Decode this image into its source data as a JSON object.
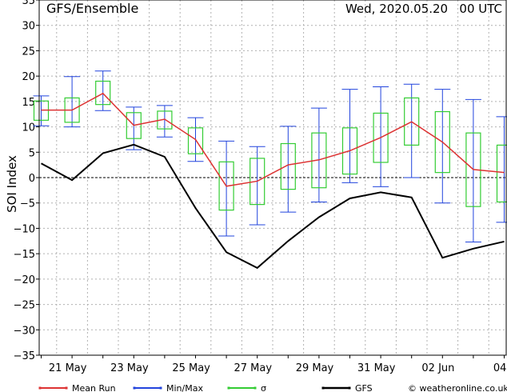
{
  "chart_data": {
    "type": "box",
    "title": "GFS/Ensemble",
    "date_label": "Wed, 2020.05.20   00 UTC",
    "ylabel": "SOI Index",
    "ylim": [
      -35,
      35
    ],
    "yticks": [
      35,
      30,
      25,
      20,
      15,
      10,
      5,
      0,
      -5,
      -10,
      -15,
      -20,
      -25,
      -30,
      -35
    ],
    "x_labels": [
      "21 May",
      "23 May",
      "25 May",
      "27 May",
      "29 May",
      "31 May",
      "02 Jun",
      "04"
    ],
    "grid": true,
    "zero_line": true,
    "series": {
      "mean_run": {
        "name": "Mean Run",
        "color": "#dd3333",
        "values": [
          13.3,
          13.3,
          16.6,
          10.3,
          11.5,
          7.5,
          -1.7,
          -0.7,
          2.5,
          3.5,
          5.3,
          7.9,
          11.0,
          7.0,
          1.6,
          1.0
        ]
      },
      "min_max": {
        "name": "Min/Max",
        "color": "#2244dd",
        "min": [
          10.2,
          10.0,
          13.2,
          5.5,
          8.0,
          3.2,
          -11.5,
          -9.3,
          -6.8,
          -4.8,
          -1.0,
          -1.8,
          0,
          -5.0,
          -12.7,
          -8.8
        ],
        "max": [
          16.1,
          19.9,
          21.0,
          13.9,
          14.2,
          11.8,
          7.2,
          6.1,
          10.1,
          13.7,
          17.4,
          17.9,
          18.4,
          17.4,
          15.4,
          12.0
        ]
      },
      "sigma": {
        "name": "σ",
        "color": "#33cc33",
        "low": [
          11.3,
          10.9,
          14.4,
          7.7,
          9.6,
          4.7,
          -6.4,
          -5.3,
          -2.3,
          -2.0,
          0.7,
          3.0,
          6.4,
          1.0,
          -5.7,
          -4.8
        ],
        "high": [
          15.1,
          15.7,
          19.0,
          12.8,
          13.1,
          9.8,
          3.1,
          3.8,
          6.7,
          8.8,
          9.8,
          12.7,
          15.7,
          13.0,
          8.8,
          6.4
        ]
      },
      "gfs": {
        "name": "GFS",
        "color": "#000000",
        "values": [
          2.8,
          -0.5,
          4.8,
          6.5,
          4.1,
          -6.0,
          -14.7,
          -17.8,
          -12.5,
          -7.8,
          -4.1,
          -2.9,
          -3.9,
          -15.8,
          -14.0,
          -12.6
        ]
      }
    }
  },
  "footer": {
    "credit": "© weatheronline.co.uk"
  }
}
